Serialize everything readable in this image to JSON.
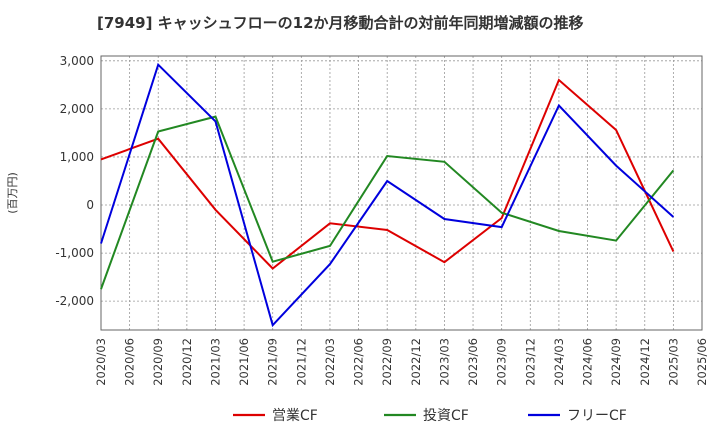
{
  "chart_data": {
    "type": "line",
    "title": "[7949]  キャッシュフローの12か月移動合計の対前年同期増減額の推移",
    "ylabel": "(百万円)",
    "xlabel": "",
    "ylim": [
      -2600,
      3100
    ],
    "yticks": [
      -2000,
      -1000,
      0,
      1000,
      2000,
      3000
    ],
    "ytick_labels": [
      "-2,000",
      "-1,000",
      "0",
      "1,000",
      "2,000",
      "3,000"
    ],
    "x_tick_labels": [
      "2020/03",
      "2020/06",
      "2020/09",
      "2020/12",
      "2021/03",
      "2021/06",
      "2021/09",
      "2021/12",
      "2022/03",
      "2022/06",
      "2022/09",
      "2022/12",
      "2023/03",
      "2023/06",
      "2023/09",
      "2023/12",
      "2024/03",
      "2024/06",
      "2024/09",
      "2024/12",
      "2025/03",
      "2025/06"
    ],
    "grid": true,
    "legend_position": "bottom",
    "series": [
      {
        "name": "営業CF",
        "color": "#dd0000",
        "x": [
          "2020/03",
          "2020/09",
          "2021/03",
          "2021/09",
          "2022/03",
          "2022/09",
          "2023/03",
          "2023/09",
          "2024/03",
          "2024/09",
          "2025/03"
        ],
        "values": [
          950,
          1380,
          -100,
          -1320,
          -380,
          -520,
          -1190,
          -270,
          2600,
          1560,
          -970
        ]
      },
      {
        "name": "投資CF",
        "color": "#228822",
        "x": [
          "2020/03",
          "2020/09",
          "2021/03",
          "2021/09",
          "2022/03",
          "2022/09",
          "2023/03",
          "2023/09",
          "2024/03",
          "2024/09",
          "2025/03"
        ],
        "values": [
          -1750,
          1530,
          1840,
          -1180,
          -850,
          1020,
          900,
          -160,
          -540,
          -740,
          720
        ]
      },
      {
        "name": "フリーCF",
        "color": "#0000dd",
        "x": [
          "2020/03",
          "2020/09",
          "2021/03",
          "2021/09",
          "2022/03",
          "2022/09",
          "2023/03",
          "2023/09",
          "2024/03",
          "2024/09",
          "2025/03"
        ],
        "values": [
          -800,
          2920,
          1740,
          -2500,
          -1230,
          500,
          -290,
          -460,
          2070,
          820,
          -250
        ]
      }
    ]
  }
}
